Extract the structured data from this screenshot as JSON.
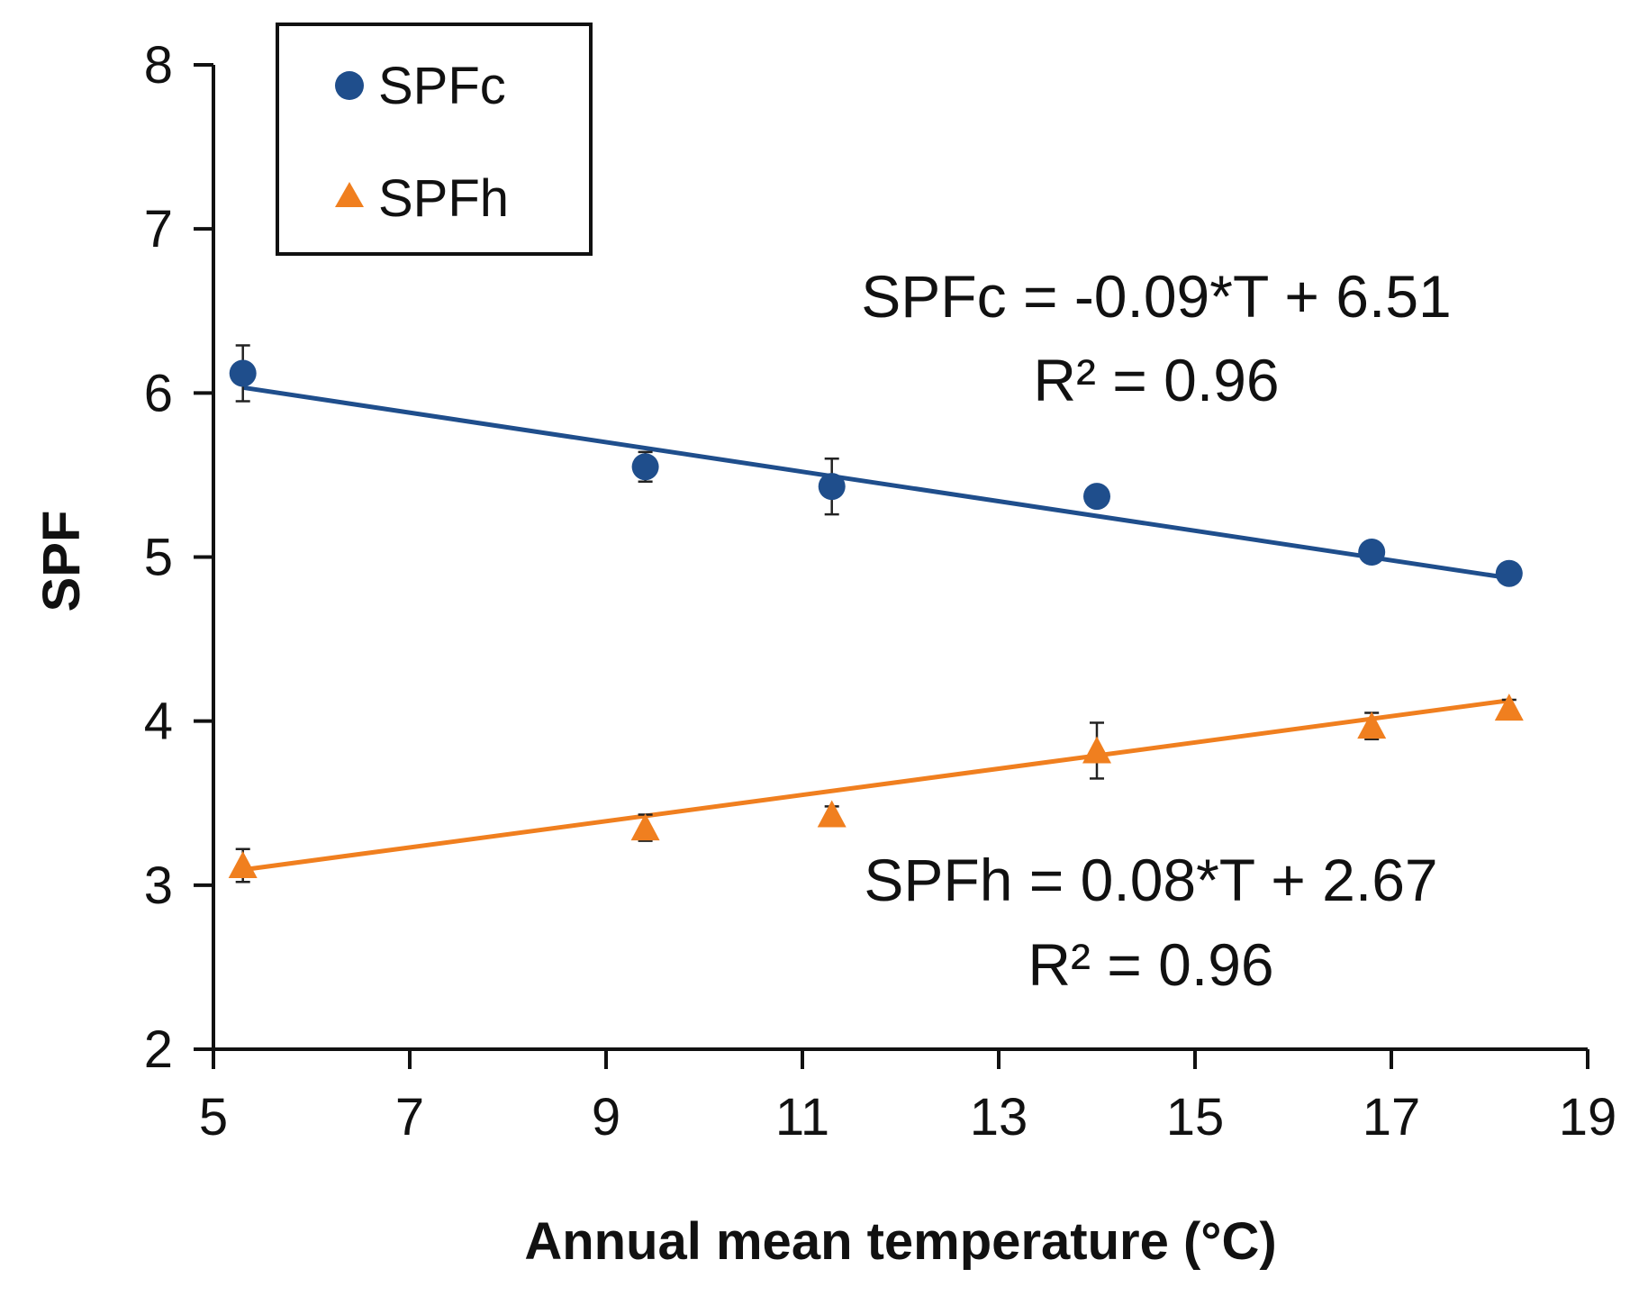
{
  "chart_data": {
    "type": "scatter",
    "title": "",
    "xlabel": "Annual mean temperature (°C)",
    "ylabel": "SPF",
    "xlim": [
      5,
      19
    ],
    "ylim": [
      2,
      8
    ],
    "xticks": [
      "5",
      "7",
      "9",
      "11",
      "13",
      "15",
      "17",
      "19"
    ],
    "yticks": [
      "2",
      "3",
      "4",
      "5",
      "6",
      "7",
      "8"
    ],
    "grid": false,
    "legend_position": "top-left",
    "series": [
      {
        "name": "SPFc",
        "marker": "circle",
        "color": "#1f4e8c",
        "x": [
          5.3,
          9.4,
          11.3,
          14.0,
          16.8,
          18.2
        ],
        "y": [
          6.12,
          5.55,
          5.43,
          5.37,
          5.03,
          4.9
        ],
        "err": [
          0.17,
          0.09,
          0.17,
          0.05,
          0.04,
          0.03
        ],
        "fit": {
          "slope": -0.09,
          "intercept": 6.51
        },
        "equation": "SPFc = -0.09*T + 6.51",
        "r2": "R² = 0.96"
      },
      {
        "name": "SPFh",
        "marker": "triangle",
        "color": "#f07f1f",
        "x": [
          5.3,
          9.4,
          11.3,
          14.0,
          16.8,
          18.2
        ],
        "y": [
          3.12,
          3.35,
          3.43,
          3.82,
          3.97,
          4.08
        ],
        "err": [
          0.1,
          0.08,
          0.05,
          0.17,
          0.08,
          0.05
        ],
        "fit": {
          "slope": 0.08,
          "intercept": 2.67
        },
        "equation": "SPFh = 0.08*T + 2.67",
        "r2": "R² = 0.96"
      }
    ]
  }
}
